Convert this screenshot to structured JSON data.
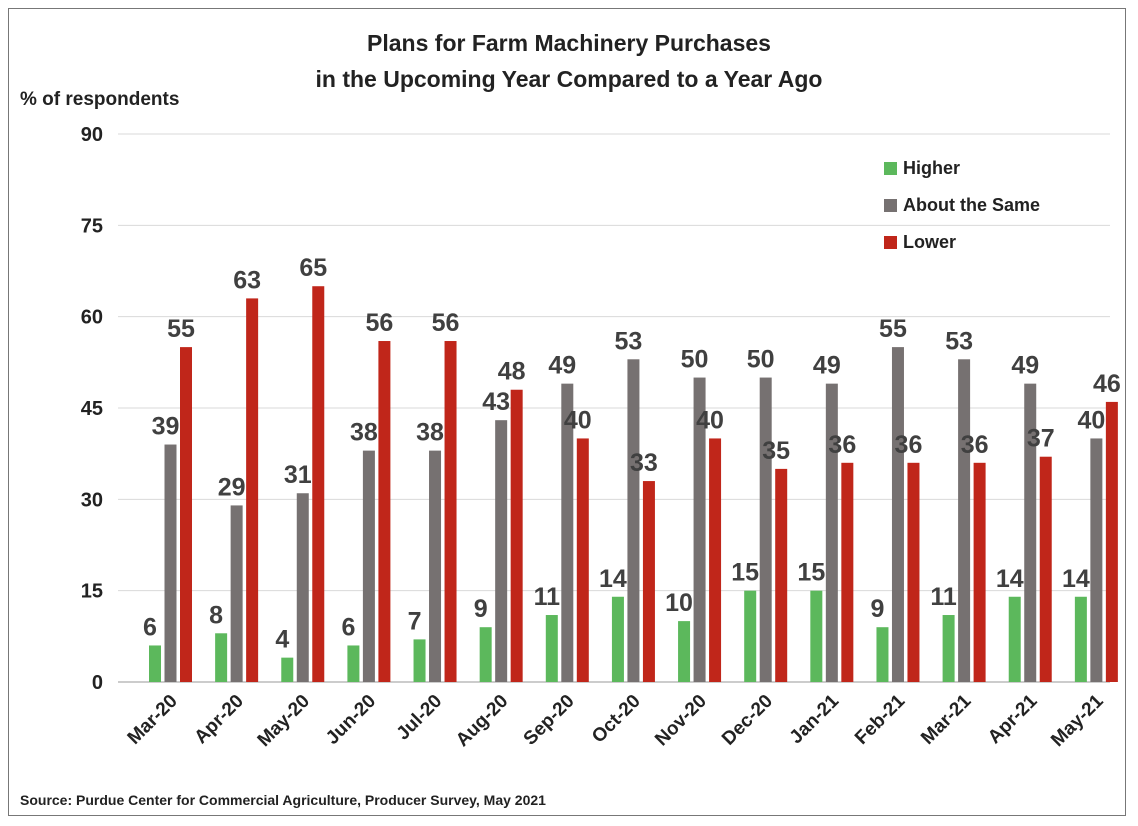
{
  "chart_data": {
    "type": "bar",
    "title": "Plans for Farm Machinery Purchases",
    "subtitle": "in the Upcoming Year Compared to a Year Ago",
    "ylabel": "% of respondents",
    "xlabel": "",
    "ylim": [
      0,
      90
    ],
    "yticks": [
      "0",
      "15",
      "30",
      "45",
      "60",
      "75",
      "90"
    ],
    "grid": true,
    "legend_position": "top-right",
    "categories": [
      "Mar-20",
      "Apr-20",
      "May-20",
      "Jun-20",
      "Jul-20",
      "Aug-20",
      "Sep-20",
      "Oct-20",
      "Nov-20",
      "Dec-20",
      "Jan-21",
      "Feb-21",
      "Mar-21",
      "Apr-21",
      "May-21"
    ],
    "series": [
      {
        "name": "Higher",
        "color": "#5cb85c",
        "values": [
          6,
          8,
          4,
          6,
          7,
          9,
          11,
          14,
          10,
          15,
          15,
          9,
          11,
          14,
          14
        ]
      },
      {
        "name": "About the Same",
        "color": "#767171",
        "values": [
          39,
          29,
          31,
          38,
          38,
          43,
          49,
          53,
          50,
          50,
          49,
          55,
          53,
          49,
          40
        ]
      },
      {
        "name": "Lower",
        "color": "#c0261a",
        "values": [
          55,
          63,
          65,
          56,
          56,
          48,
          40,
          33,
          40,
          35,
          36,
          36,
          36,
          37,
          46
        ]
      }
    ]
  },
  "source": "Source: Purdue Center for Commercial Agriculture, Producer Survey, May 2021"
}
